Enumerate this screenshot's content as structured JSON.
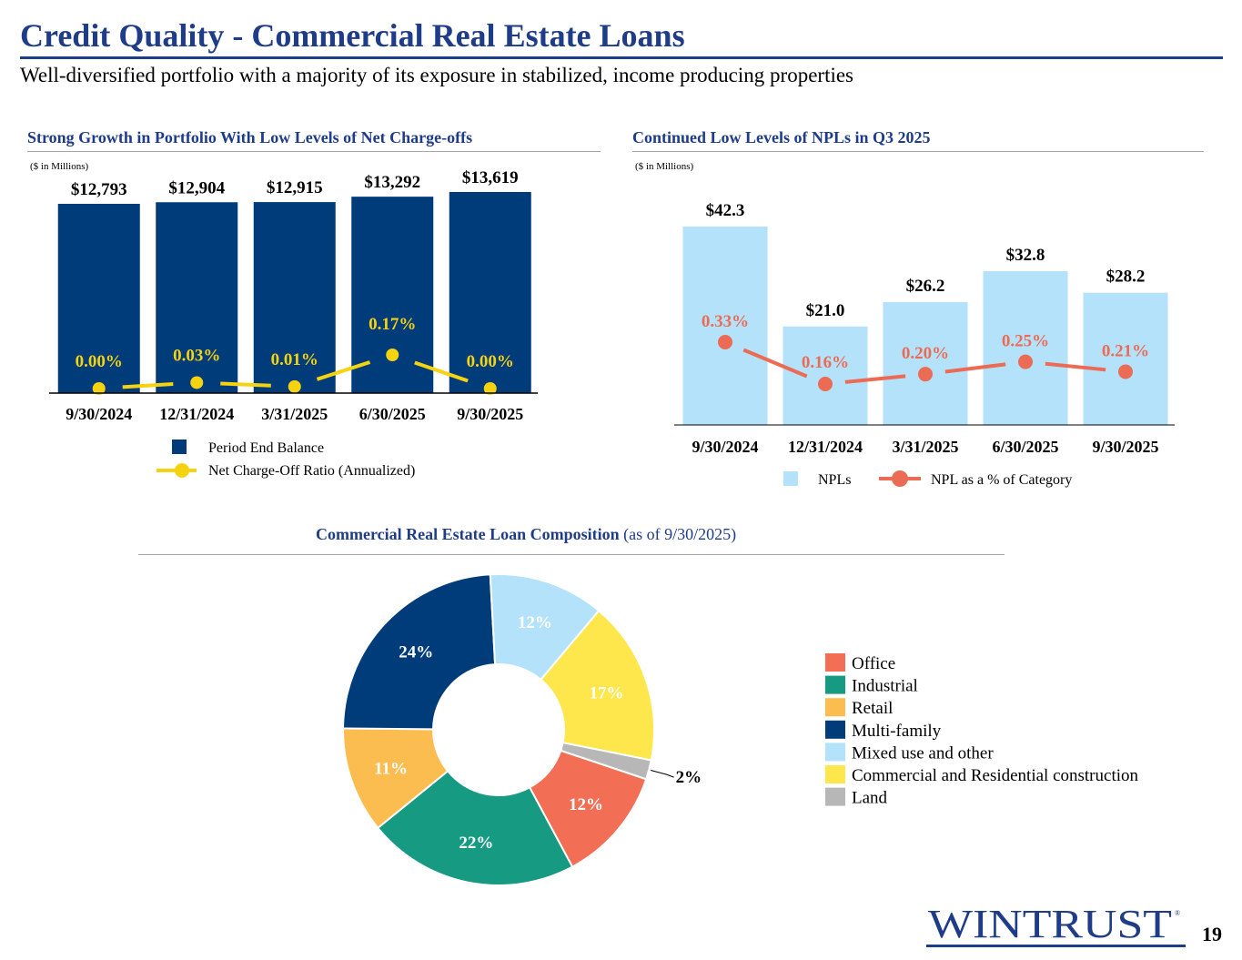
{
  "header": {
    "title": "Credit Quality - Commercial Real Estate Loans",
    "subtitle": "Well-diversified portfolio with a majority of its exposure in stabilized, income producing properties"
  },
  "footer": {
    "page_number": "19",
    "logo_text": "WINTRUST"
  },
  "colors": {
    "brand_blue": "#1f3c88",
    "navy_bar": "#003b7a",
    "yellow_line": "#f5d311",
    "light_blue_bar": "#b3e2fa",
    "coral_line": "#ec6b55"
  },
  "chart_data": [
    {
      "id": "cre_balance",
      "type": "bar",
      "title": "Strong Growth in Portfolio With Low Levels of Net Charge-offs",
      "unit_note": "($ in Millions)",
      "categories": [
        "9/30/2024",
        "12/31/2024",
        "3/31/2025",
        "6/30/2025",
        "9/30/2025"
      ],
      "series": [
        {
          "name": "Period End Balance",
          "kind": "bar",
          "color": "#003b7a",
          "values": [
            12793,
            12904,
            12915,
            13292,
            13619
          ],
          "labels": [
            "$12,793",
            "$12,904",
            "$12,915",
            "$13,292",
            "$13,619"
          ]
        },
        {
          "name": "Net Charge-Off Ratio (Annualized)",
          "kind": "line",
          "color": "#f5d311",
          "values": [
            0.0,
            0.03,
            0.01,
            0.17,
            0.0
          ],
          "labels": [
            "0.00%",
            "0.03%",
            "0.01%",
            "0.17%",
            "0.00%"
          ]
        }
      ],
      "legend_position": "bottom"
    },
    {
      "id": "npl",
      "type": "bar",
      "title": "Continued Low Levels of NPLs in Q3 2025",
      "unit_note": "($ in Millions)",
      "categories": [
        "9/30/2024",
        "12/31/2024",
        "3/31/2025",
        "6/30/2025",
        "9/30/2025"
      ],
      "series": [
        {
          "name": "NPLs",
          "kind": "bar",
          "color": "#b3e2fa",
          "values": [
            42.3,
            21.0,
            26.2,
            32.8,
            28.2
          ],
          "labels": [
            "$42.3",
            "$21.0",
            "$26.2",
            "$32.8",
            "$28.2"
          ]
        },
        {
          "name": "NPL as a % of Category",
          "kind": "line",
          "color": "#ec6b55",
          "values": [
            0.33,
            0.16,
            0.2,
            0.25,
            0.21
          ],
          "labels": [
            "0.33%",
            "0.16%",
            "0.20%",
            "0.25%",
            "0.21%"
          ]
        }
      ],
      "legend_position": "bottom"
    },
    {
      "id": "composition",
      "type": "pie",
      "title": "Commercial Real Estate Loan Composition",
      "title_suffix": "(as of 9/30/2025)",
      "slices": [
        {
          "label": "Office",
          "value": 12,
          "text": "12%",
          "color": "#f26f55"
        },
        {
          "label": "Industrial",
          "value": 22,
          "text": "22%",
          "color": "#169b82"
        },
        {
          "label": "Retail",
          "value": 11,
          "text": "11%",
          "color": "#fbbd50"
        },
        {
          "label": "Multi-family",
          "value": 24,
          "text": "24%",
          "color": "#003b7a"
        },
        {
          "label": "Mixed use and other",
          "value": 12,
          "text": "12%",
          "color": "#b3e2fa"
        },
        {
          "label": "Commercial and Residential construction",
          "value": 17,
          "text": "17%",
          "color": "#fde74c"
        },
        {
          "label": "Land",
          "value": 2,
          "text": "2%",
          "color": "#b7b7b7"
        }
      ],
      "legend_position": "right"
    }
  ]
}
